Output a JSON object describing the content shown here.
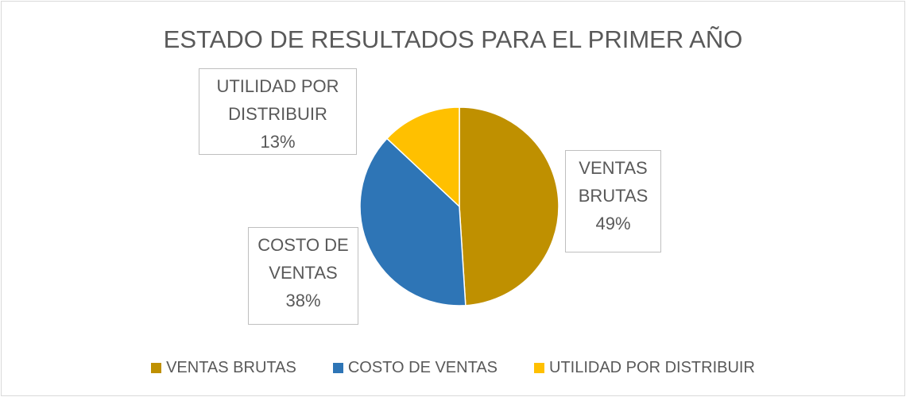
{
  "chart_data": {
    "type": "pie",
    "title": "ESTADO DE RESULTADOS PARA EL PRIMER AÑO",
    "categories": [
      "VENTAS BRUTAS",
      "COSTO DE VENTAS",
      "UTILIDAD POR DISTRIBUIR"
    ],
    "values": [
      49,
      38,
      13
    ],
    "value_labels": [
      "49%",
      "38%",
      "13%"
    ],
    "colors": [
      "#BF9000",
      "#2E75B6",
      "#FFC000"
    ],
    "legend": "bottom"
  }
}
